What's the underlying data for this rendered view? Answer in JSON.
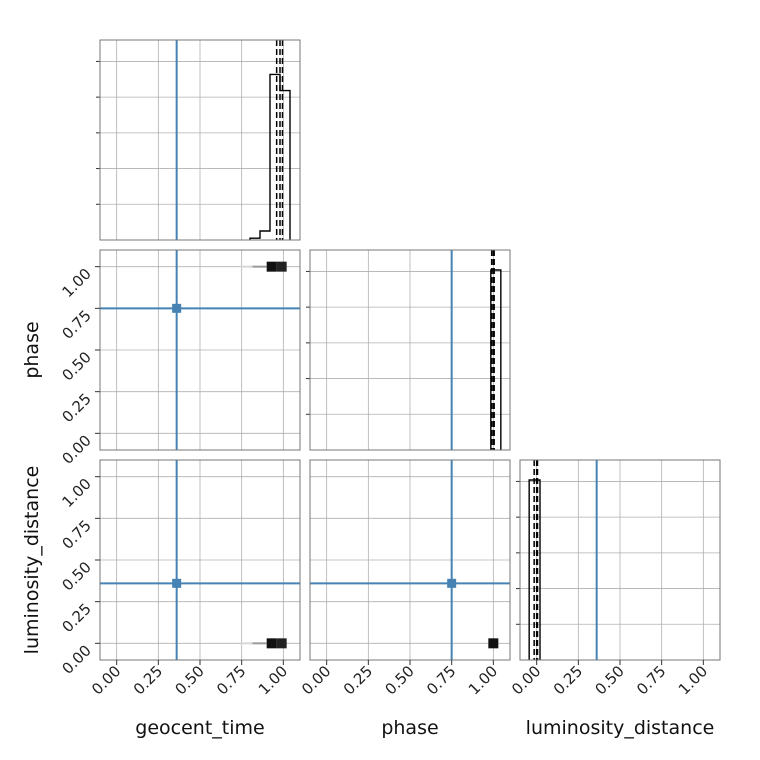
{
  "chart_data": {
    "type": "corner",
    "parameters": [
      "geocent_time",
      "phase",
      "luminosity_distance"
    ],
    "axis_range": [
      -0.1,
      1.1
    ],
    "ticks": [
      0.0,
      0.25,
      0.5,
      0.75,
      1.0
    ],
    "tick_labels": [
      "0.00",
      "0.25",
      "0.50",
      "0.75",
      "1.00"
    ],
    "truths": {
      "geocent_time": 0.36,
      "phase": 0.75,
      "luminosity_distance": 0.36
    },
    "truth_color": "#4682b4",
    "grid": true,
    "marginals": [
      {
        "parameter": "geocent_time",
        "bins": [
          {
            "x0": 0.8,
            "x1": 0.86,
            "h": 0.01
          },
          {
            "x0": 0.86,
            "x1": 0.92,
            "h": 0.05
          },
          {
            "x0": 0.92,
            "x1": 0.98,
            "h": 0.92
          },
          {
            "x0": 0.98,
            "x1": 1.04,
            "h": 0.83
          }
        ],
        "quantiles": [
          0.96,
          0.98,
          0.995
        ]
      },
      {
        "parameter": "phase",
        "bins": [
          {
            "x0": 0.985,
            "x1": 1.045,
            "h": 1.0
          }
        ],
        "quantiles": [
          0.99,
          1.0,
          1.005
        ]
      },
      {
        "parameter": "luminosity_distance",
        "bins": [
          {
            "x0": -0.045,
            "x1": 0.02,
            "h": 1.0
          }
        ],
        "quantiles": [
          -0.015,
          0.0,
          0.005
        ]
      }
    ],
    "scatter_2d": [
      {
        "x": "geocent_time",
        "y": "phase",
        "points": [
          [
            0.93,
            1.0
          ],
          [
            0.99,
            1.0
          ],
          [
            0.85,
            1.0
          ],
          [
            0.78,
            1.0
          ]
        ]
      },
      {
        "x": "geocent_time",
        "y": "luminosity_distance",
        "points": [
          [
            0.93,
            0.0
          ],
          [
            0.99,
            0.0
          ],
          [
            0.85,
            0.0
          ],
          [
            0.78,
            0.0
          ]
        ]
      },
      {
        "x": "phase",
        "y": "luminosity_distance",
        "points": [
          [
            1.0,
            0.0
          ]
        ]
      }
    ]
  }
}
